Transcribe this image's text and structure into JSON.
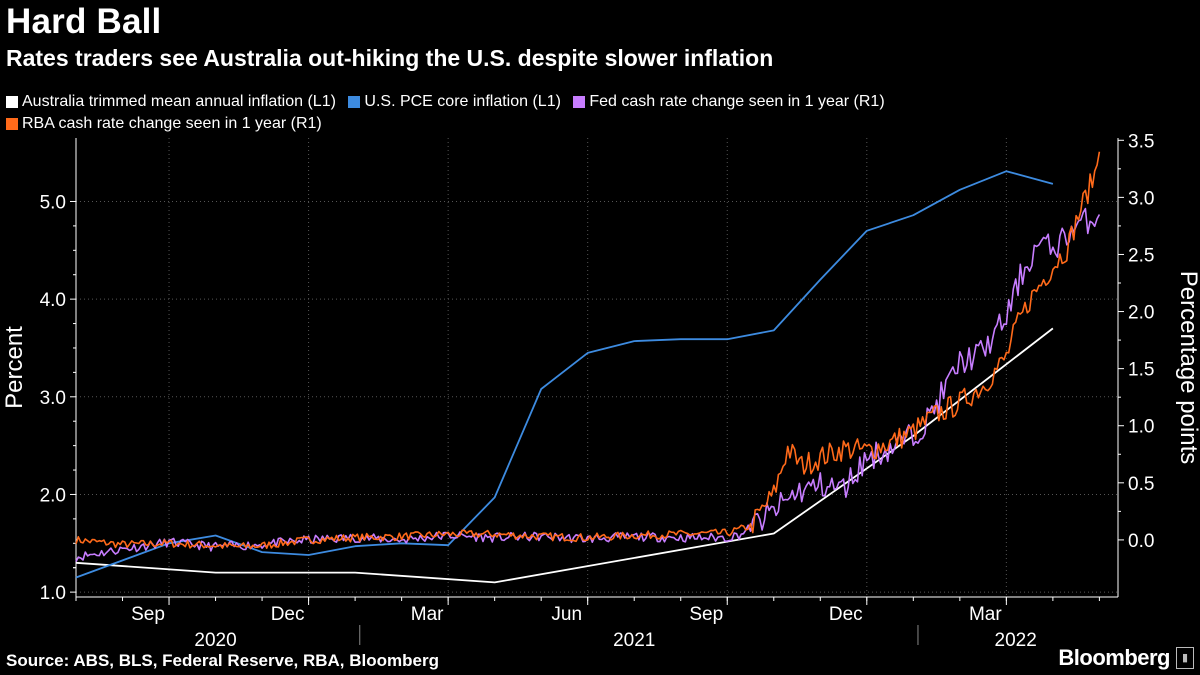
{
  "title": "Hard Ball",
  "subtitle": "Rates traders see Australia out-hiking the U.S. despite slower inflation",
  "legend": [
    {
      "label": "Australia trimmed mean annual inflation (L1)",
      "color": "#ffffff"
    },
    {
      "label": "U.S. PCE core inflation (L1)",
      "color": "#3d8be0"
    },
    {
      "label": "Fed cash rate change seen in 1 year  (R1)",
      "color": "#c77dff"
    },
    {
      "label": "RBA cash rate change seen in 1 year (R1)",
      "color": "#ff6a1a"
    }
  ],
  "footer": {
    "source": "Source: ABS, BLS, Federal Reserve, RBA, Bloomberg",
    "brand": "Bloomberg"
  },
  "chart_data": {
    "type": "line",
    "x_unit": "months since 2020-07-01",
    "xlim": [
      0,
      22.4
    ],
    "x_ticks": [
      {
        "x": 2,
        "label": "Sep"
      },
      {
        "x": 5,
        "label": "Dec"
      },
      {
        "x": 8,
        "label": "Mar"
      },
      {
        "x": 11,
        "label": "Jun"
      },
      {
        "x": 14,
        "label": "Sep"
      },
      {
        "x": 17,
        "label": "Dec"
      },
      {
        "x": 20,
        "label": "Mar"
      }
    ],
    "year_labels": [
      {
        "x": 3,
        "label": "2020"
      },
      {
        "x": 12,
        "label": "2021"
      },
      {
        "x": 20.2,
        "label": "2022"
      }
    ],
    "year_separators": [
      6.1,
      18.1
    ],
    "left_axis": {
      "label": "Percent",
      "ylim": [
        0.95,
        5.65
      ],
      "ticks": [
        1.0,
        2.0,
        3.0,
        4.0,
        5.0
      ],
      "tick_labels": [
        "1.0",
        "2.0",
        "3.0",
        "4.0",
        "5.0"
      ]
    },
    "right_axis": {
      "label": "Percentage points",
      "ylim": [
        -0.5,
        3.52
      ],
      "ticks": [
        0.0,
        0.5,
        1.0,
        1.5,
        2.0,
        2.5,
        3.0,
        3.5
      ],
      "tick_labels": [
        "0.0",
        "0.5",
        "1.0",
        "1.5",
        "2.0",
        "2.5",
        "3.0",
        "3.5"
      ]
    },
    "series": [
      {
        "name": "Australia trimmed mean annual inflation",
        "axis": "left",
        "color": "#ffffff",
        "points": [
          [
            0,
            1.3
          ],
          [
            3,
            1.2
          ],
          [
            6,
            1.2
          ],
          [
            9,
            1.1
          ],
          [
            15,
            1.6
          ],
          [
            18,
            2.6
          ],
          [
            21,
            3.7
          ]
        ]
      },
      {
        "name": "U.S. PCE core inflation",
        "axis": "left",
        "color": "#3d8be0",
        "points": [
          [
            0,
            1.15
          ],
          [
            2,
            1.5
          ],
          [
            3,
            1.58
          ],
          [
            4,
            1.41
          ],
          [
            5,
            1.38
          ],
          [
            6,
            1.47
          ],
          [
            7,
            1.5
          ],
          [
            8,
            1.48
          ],
          [
            9,
            1.97
          ],
          [
            10,
            3.08
          ],
          [
            11,
            3.45
          ],
          [
            12,
            3.57
          ],
          [
            13,
            3.59
          ],
          [
            14,
            3.59
          ],
          [
            15,
            3.68
          ],
          [
            16,
            4.2
          ],
          [
            17,
            4.7
          ],
          [
            18,
            4.86
          ],
          [
            19,
            5.12
          ],
          [
            20,
            5.31
          ],
          [
            21,
            5.18
          ]
        ]
      },
      {
        "name": "Fed cash rate change seen in 1 year",
        "axis": "right",
        "color": "#c77dff",
        "noise": 0.04,
        "seed": 11,
        "points": [
          [
            0,
            -0.15
          ],
          [
            1,
            -0.08
          ],
          [
            2,
            -0.02
          ],
          [
            3,
            -0.06
          ],
          [
            4,
            -0.04
          ],
          [
            5,
            0.0
          ],
          [
            6,
            0.02
          ],
          [
            7,
            0.0
          ],
          [
            8,
            0.04
          ],
          [
            9,
            0.02
          ],
          [
            10,
            0.03
          ],
          [
            11,
            0.01
          ],
          [
            12,
            0.03
          ],
          [
            13,
            0.02
          ],
          [
            14,
            0.02
          ],
          [
            14.3,
            0.05
          ],
          [
            15,
            0.25
          ],
          [
            15.5,
            0.42
          ],
          [
            16,
            0.48
          ],
          [
            16.5,
            0.45
          ],
          [
            17,
            0.72
          ],
          [
            17.5,
            0.8
          ],
          [
            18,
            0.92
          ],
          [
            18.3,
            1.05
          ],
          [
            19,
            1.55
          ],
          [
            19.5,
            1.65
          ],
          [
            20,
            1.95
          ],
          [
            20.3,
            2.3
          ],
          [
            20.7,
            2.6
          ],
          [
            21,
            2.55
          ],
          [
            21.5,
            2.75
          ],
          [
            22,
            2.85
          ]
        ]
      },
      {
        "name": "RBA cash rate change seen in 1 year",
        "axis": "right",
        "color": "#ff6a1a",
        "noise": 0.035,
        "seed": 7,
        "points": [
          [
            0,
            0.0
          ],
          [
            1,
            -0.04
          ],
          [
            2,
            -0.03
          ],
          [
            3,
            -0.05
          ],
          [
            3.5,
            -0.06
          ],
          [
            4,
            -0.05
          ],
          [
            5,
            0.0
          ],
          [
            6,
            0.02
          ],
          [
            7,
            0.03
          ],
          [
            8,
            0.05
          ],
          [
            9,
            0.05
          ],
          [
            10,
            0.03
          ],
          [
            11,
            0.02
          ],
          [
            12,
            0.04
          ],
          [
            13,
            0.05
          ],
          [
            14,
            0.06
          ],
          [
            14.5,
            0.12
          ],
          [
            15,
            0.4
          ],
          [
            15.3,
            0.8
          ],
          [
            15.6,
            0.65
          ],
          [
            16,
            0.72
          ],
          [
            16.5,
            0.8
          ],
          [
            17,
            0.78
          ],
          [
            17.5,
            0.85
          ],
          [
            18,
            0.95
          ],
          [
            18.5,
            1.1
          ],
          [
            19,
            1.2
          ],
          [
            19.5,
            1.35
          ],
          [
            20,
            1.6
          ],
          [
            20.2,
            1.85
          ],
          [
            20.5,
            2.1
          ],
          [
            21,
            2.4
          ],
          [
            21.3,
            2.55
          ],
          [
            21.6,
            2.9
          ],
          [
            21.9,
            3.2
          ],
          [
            22,
            3.4
          ]
        ]
      }
    ]
  }
}
